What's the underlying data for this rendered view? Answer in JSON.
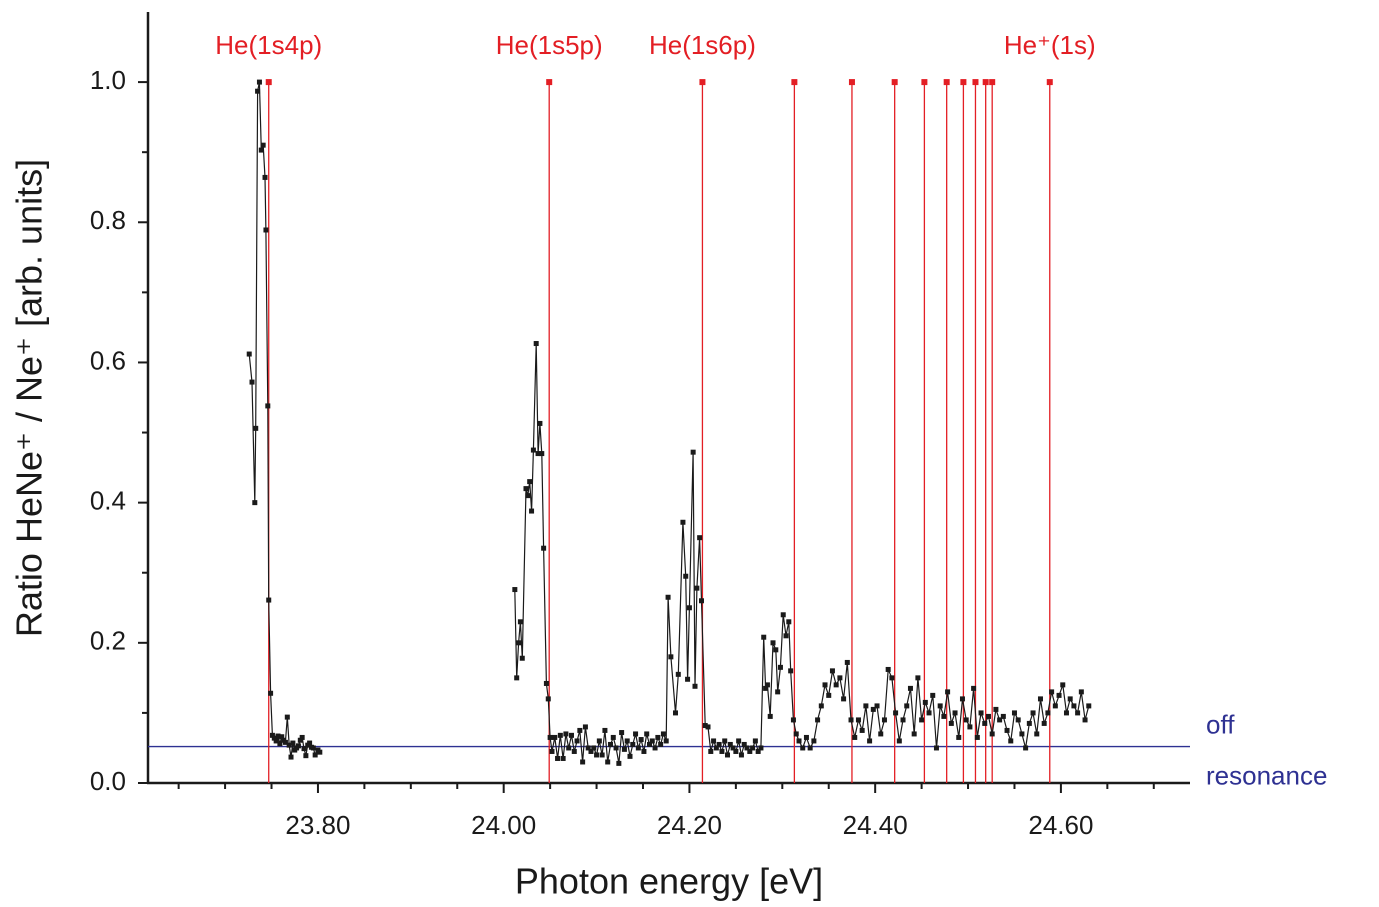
{
  "chart_data": {
    "type": "line",
    "x_label": "Photon energy [eV]",
    "y_label": "Ratio HeNe⁺ / Ne⁺ [arb. units]",
    "color": "#1a1a1a",
    "xlim": [
      23.617,
      24.739
    ],
    "ylim": [
      0,
      1.1
    ],
    "xticks": [
      {
        "value": 23.8,
        "label": "23.80"
      },
      {
        "value": 24.0,
        "label": "24.00"
      },
      {
        "value": 24.2,
        "label": "24.20"
      },
      {
        "value": 24.4,
        "label": "24.40"
      },
      {
        "value": 24.6,
        "label": "24.60"
      }
    ],
    "x_minor_ticks": [
      23.65,
      23.7,
      23.75,
      23.85,
      23.9,
      23.95,
      24.05,
      24.1,
      24.15,
      24.25,
      24.3,
      24.35,
      24.45,
      24.5,
      24.55,
      24.65,
      24.7
    ],
    "yticks": [
      {
        "value": 0,
        "label": "0.0"
      },
      0.2,
      0.4,
      0.6,
      0.8,
      {
        "value": 1,
        "label": "1.0"
      }
    ],
    "y_minor_ticks": [
      0.1,
      0.3,
      0.5,
      0.7,
      0.9
    ],
    "x": [
      23.726,
      23.729,
      23.732,
      23.733,
      23.735,
      23.737,
      23.739,
      23.741,
      23.743,
      23.744,
      23.746,
      23.747,
      23.749,
      23.751,
      23.753,
      23.755,
      23.757,
      23.759,
      23.761,
      23.763,
      23.765,
      23.767,
      23.769,
      23.771,
      23.773,
      23.775,
      23.777,
      23.779,
      23.781,
      23.783,
      23.785,
      23.787,
      23.789,
      23.791,
      23.793,
      23.795,
      23.797,
      23.8,
      23.802,
      23.804,
      23.9,
      24.012,
      24.014,
      24.016,
      24.018,
      24.02,
      24.024,
      24.026,
      24.028,
      24.03,
      24.032,
      24.035,
      24.037,
      24.039,
      24.041,
      24.043,
      24.046,
      24.048,
      24.05,
      24.052,
      24.055,
      24.058,
      24.061,
      24.064,
      24.067,
      24.07,
      24.073,
      24.076,
      24.079,
      24.082,
      24.085,
      24.088,
      24.091,
      24.094,
      24.097,
      24.1,
      24.103,
      24.106,
      24.109,
      24.112,
      24.115,
      24.118,
      24.121,
      24.124,
      24.127,
      24.13,
      24.133,
      24.136,
      24.139,
      24.142,
      24.145,
      24.148,
      24.151,
      24.154,
      24.157,
      24.16,
      24.163,
      24.166,
      24.169,
      24.172,
      24.175,
      24.177,
      24.18,
      24.185,
      24.188,
      24.193,
      24.196,
      24.198,
      24.2,
      24.204,
      24.206,
      24.208,
      24.211,
      24.213,
      24.217,
      24.22,
      24.223,
      24.226,
      24.229,
      24.232,
      24.235,
      24.238,
      24.241,
      24.244,
      24.247,
      24.25,
      24.253,
      24.256,
      24.259,
      24.262,
      24.265,
      24.268,
      24.271,
      24.274,
      24.277,
      24.28,
      24.282,
      24.284,
      24.287,
      24.29,
      24.293,
      24.295,
      24.298,
      24.301,
      24.304,
      24.307,
      24.309,
      24.312,
      24.315,
      24.318,
      24.322,
      24.326,
      24.33,
      24.334,
      24.338,
      24.342,
      24.346,
      24.35,
      24.354,
      24.358,
      24.362,
      24.366,
      24.37,
      24.374,
      24.378,
      24.382,
      24.386,
      24.39,
      24.394,
      24.398,
      24.402,
      24.406,
      24.41,
      24.414,
      24.418,
      24.422,
      24.426,
      24.43,
      24.434,
      24.438,
      24.442,
      24.446,
      24.45,
      24.454,
      24.458,
      24.462,
      24.466,
      24.47,
      24.474,
      24.478,
      24.482,
      24.486,
      24.49,
      24.494,
      24.498,
      24.502,
      24.506,
      24.51,
      24.514,
      24.518,
      24.522,
      24.526,
      24.53,
      24.534,
      24.538,
      24.542,
      24.546,
      24.55,
      24.554,
      24.558,
      24.562,
      24.566,
      24.57,
      24.574,
      24.578,
      24.582,
      24.586,
      24.59,
      24.594,
      24.598,
      24.602,
      24.606,
      24.61,
      24.614,
      24.618,
      24.622,
      24.626,
      24.63
    ],
    "values": [
      0.612,
      0.572,
      0.4,
      0.506,
      0.987,
      1.0,
      0.903,
      0.91,
      0.864,
      0.789,
      0.538,
      0.261,
      0.128,
      0.068,
      0.064,
      0.06,
      0.067,
      0.056,
      0.066,
      0.061,
      0.058,
      0.094,
      0.054,
      0.037,
      0.057,
      0.047,
      0.05,
      0.053,
      0.061,
      0.065,
      0.049,
      0.039,
      0.054,
      0.057,
      0.051,
      0.05,
      0.04,
      0.047,
      0.044,
      null,
      null,
      0.276,
      0.15,
      0.2,
      0.23,
      0.178,
      0.42,
      0.41,
      0.43,
      0.388,
      0.475,
      0.627,
      0.47,
      0.513,
      0.47,
      0.335,
      0.142,
      0.12,
      0.065,
      0.045,
      0.065,
      0.035,
      0.068,
      0.035,
      0.07,
      0.05,
      0.068,
      0.045,
      0.06,
      0.075,
      0.03,
      0.08,
      0.05,
      0.045,
      0.05,
      0.04,
      0.06,
      0.04,
      0.075,
      0.03,
      0.055,
      0.065,
      0.05,
      0.028,
      0.072,
      0.048,
      0.06,
      0.038,
      0.055,
      0.07,
      0.05,
      0.062,
      0.045,
      0.07,
      0.055,
      0.06,
      0.05,
      0.065,
      0.055,
      0.07,
      0.06,
      0.265,
      0.18,
      0.1,
      0.155,
      0.372,
      0.295,
      0.148,
      0.25,
      0.472,
      0.138,
      0.278,
      0.35,
      0.26,
      0.082,
      0.08,
      0.045,
      0.06,
      0.05,
      0.055,
      0.045,
      0.06,
      0.04,
      0.055,
      0.05,
      0.045,
      0.06,
      0.04,
      0.055,
      0.05,
      0.045,
      0.05,
      0.06,
      0.045,
      0.05,
      0.208,
      0.135,
      0.14,
      0.095,
      0.2,
      0.19,
      0.13,
      0.165,
      0.24,
      0.21,
      0.23,
      0.16,
      0.09,
      0.07,
      0.06,
      0.05,
      0.065,
      0.05,
      0.06,
      0.09,
      0.11,
      0.14,
      0.125,
      0.16,
      0.14,
      0.15,
      0.12,
      0.172,
      0.09,
      0.065,
      0.09,
      0.075,
      0.11,
      0.06,
      0.105,
      0.11,
      0.07,
      0.09,
      0.162,
      0.15,
      0.1,
      0.06,
      0.09,
      0.11,
      0.135,
      0.07,
      0.15,
      0.09,
      0.115,
      0.1,
      0.125,
      0.05,
      0.11,
      0.095,
      0.13,
      0.085,
      0.1,
      0.065,
      0.12,
      0.09,
      0.08,
      0.135,
      0.065,
      0.1,
      0.085,
      0.095,
      0.07,
      0.105,
      0.09,
      0.095,
      0.075,
      0.06,
      0.1,
      0.09,
      0.07,
      0.05,
      0.085,
      0.1,
      0.07,
      0.12,
      0.085,
      0.1,
      0.13,
      0.11,
      0.125,
      0.14,
      0.1,
      0.12,
      0.11,
      0.1,
      0.13,
      0.09,
      0.11
    ],
    "resonances": {
      "color": "#e31e24",
      "height": 1.0,
      "positions": [
        23.747,
        24.049,
        24.214,
        24.313,
        24.375,
        24.421,
        24.453,
        24.477,
        24.495,
        24.508,
        24.519,
        24.526,
        24.588
      ],
      "labels": [
        {
          "x": 23.747,
          "text": "He(1s4p)"
        },
        {
          "x": 24.049,
          "text": "He(1s5p)"
        },
        {
          "x": 24.214,
          "text": "He(1s6p)"
        },
        {
          "x": 24.588,
          "text": "He⁺(1s)"
        }
      ]
    },
    "off_resonance": {
      "y": 0.052,
      "color": "#2e3192",
      "lines": [
        "off",
        "resonance"
      ]
    }
  }
}
